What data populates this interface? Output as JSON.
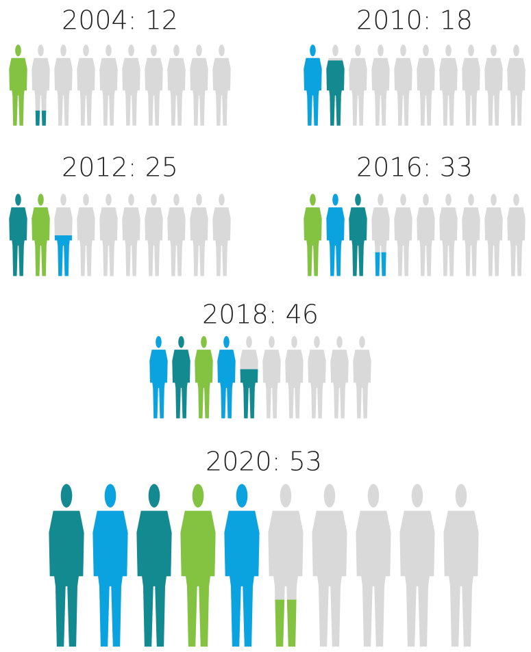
{
  "chart_data": [
    {
      "type": "pictogram",
      "title": "2004: 12",
      "value": 12,
      "ylim": [
        0,
        100
      ],
      "colors": [
        "#84c341",
        "#138a8f"
      ],
      "empty_color": "#d9d9d9"
    },
    {
      "type": "pictogram",
      "title": "2010: 18",
      "value": 18,
      "ylim": [
        0,
        100
      ],
      "colors": [
        "#0aa3e0",
        "#138a8f"
      ],
      "empty_color": "#d9d9d9"
    },
    {
      "type": "pictogram",
      "title": "2012: 25",
      "value": 25,
      "ylim": [
        0,
        100
      ],
      "colors": [
        "#138a8f",
        "#84c341",
        "#0aa3e0"
      ],
      "empty_color": "#d9d9d9"
    },
    {
      "type": "pictogram",
      "title": "2016: 33",
      "value": 33,
      "ylim": [
        0,
        100
      ],
      "colors": [
        "#84c341",
        "#0aa3e0",
        "#138a8f",
        "#0aa3e0"
      ],
      "empty_color": "#d9d9d9"
    },
    {
      "type": "pictogram",
      "title": "2018: 46",
      "value": 46,
      "ylim": [
        0,
        100
      ],
      "colors": [
        "#0aa3e0",
        "#138a8f",
        "#84c341",
        "#0aa3e0",
        "#138a8f"
      ],
      "empty_color": "#d9d9d9"
    },
    {
      "type": "pictogram",
      "title": "2020: 53",
      "value": 53,
      "ylim": [
        0,
        100
      ],
      "colors": [
        "#138a8f",
        "#0aa3e0",
        "#138a8f",
        "#84c341",
        "#0aa3e0",
        "#84c341"
      ],
      "empty_color": "#d9d9d9"
    }
  ]
}
